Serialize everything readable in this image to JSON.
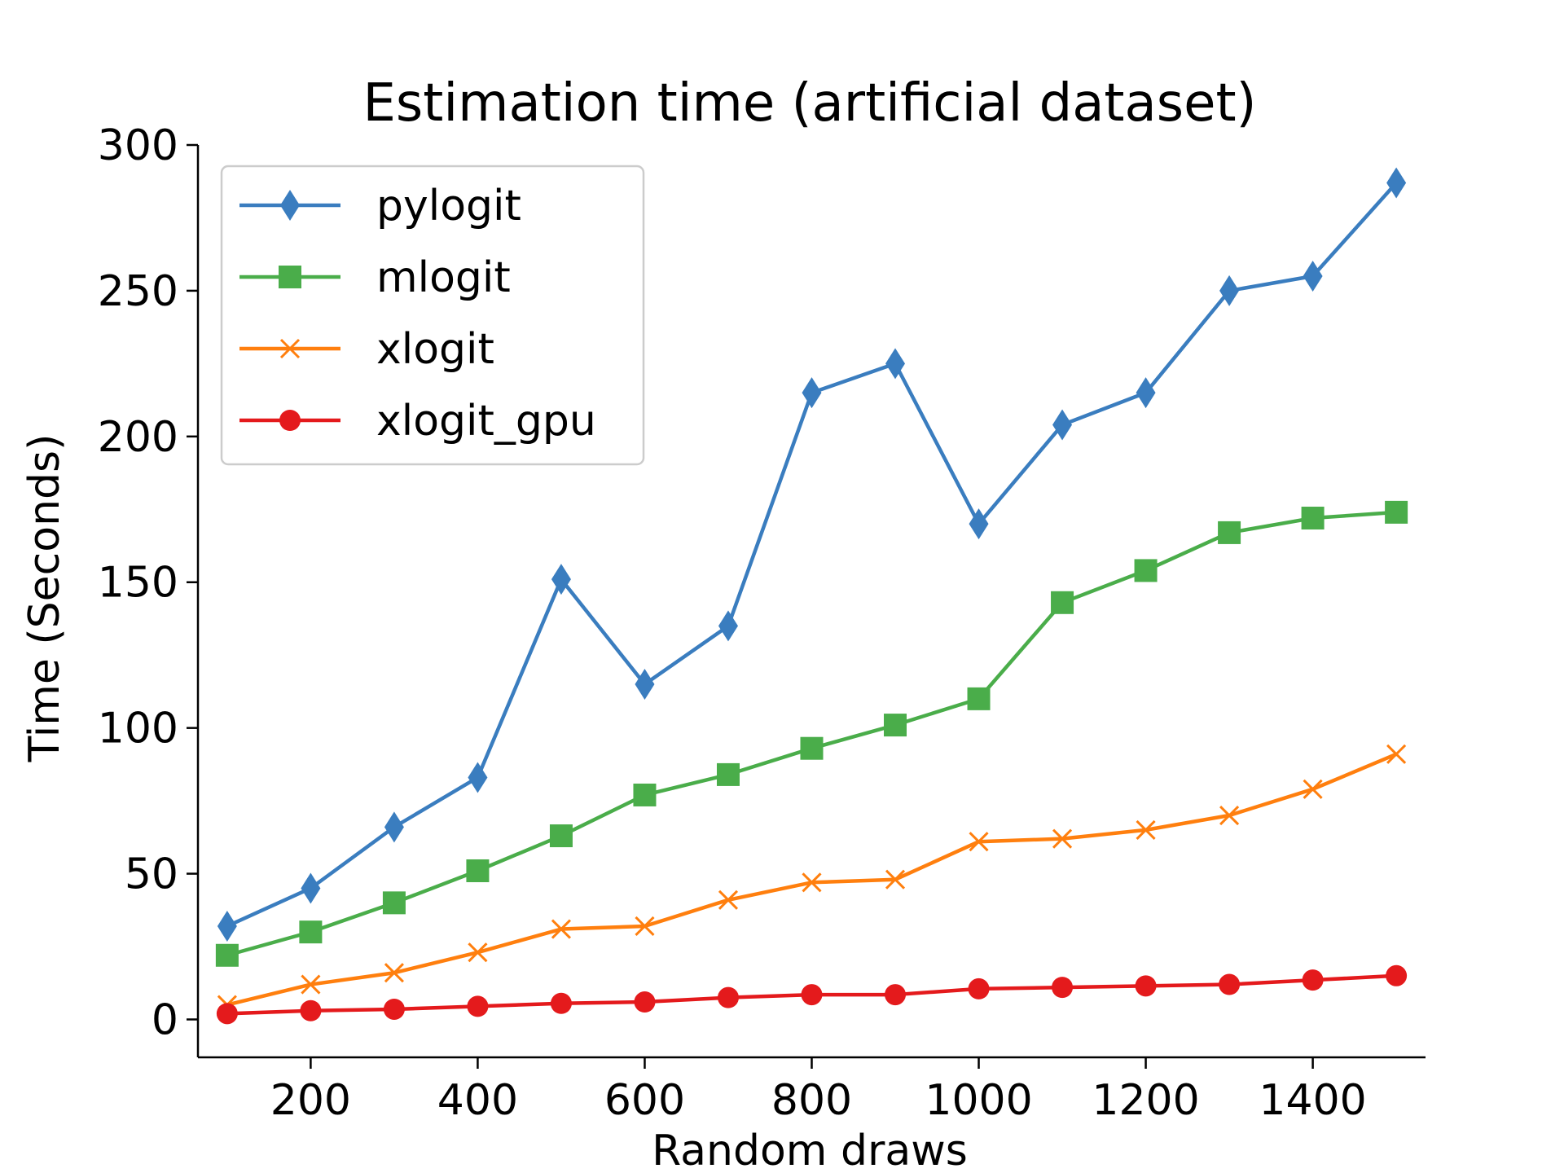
{
  "chart_data": {
    "type": "line",
    "title": "Estimation time (artificial dataset)",
    "xlabel": "Random draws",
    "ylabel": "Time (Seconds)",
    "xlim": [
      65,
      1535
    ],
    "ylim": [
      -13,
      300
    ],
    "xticks": [
      200,
      400,
      600,
      800,
      1000,
      1200,
      1400
    ],
    "yticks": [
      0,
      50,
      100,
      150,
      200,
      250,
      300
    ],
    "grid": false,
    "legend_position": "upper-left",
    "x": [
      100,
      200,
      300,
      400,
      500,
      600,
      700,
      800,
      900,
      1000,
      1100,
      1200,
      1300,
      1400,
      1500
    ],
    "series": [
      {
        "name": "pylogit",
        "color": "#3a7dbf",
        "marker": "thin-diamond",
        "values": [
          32,
          45,
          66,
          83,
          151,
          115,
          135,
          215,
          225,
          170,
          204,
          215,
          250,
          255,
          287
        ]
      },
      {
        "name": "mlogit",
        "color": "#4aad4a",
        "marker": "square",
        "values": [
          22,
          30,
          40,
          51,
          63,
          77,
          84,
          93,
          101,
          110,
          143,
          154,
          167,
          172,
          174
        ]
      },
      {
        "name": "xlogit",
        "color": "#ff7f0e",
        "marker": "x",
        "values": [
          5,
          12,
          16,
          23,
          31,
          32,
          41,
          47,
          48,
          61,
          62,
          65,
          70,
          79,
          91
        ]
      },
      {
        "name": "xlogit_gpu",
        "color": "#e41a1c",
        "marker": "circle",
        "values": [
          2,
          3,
          3.5,
          4.5,
          5.5,
          6,
          7.5,
          8.5,
          8.5,
          10.5,
          11,
          11.5,
          12,
          13.5,
          15
        ]
      }
    ]
  }
}
